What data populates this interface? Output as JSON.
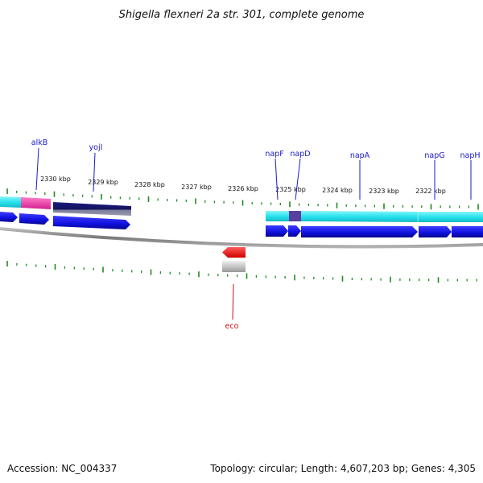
{
  "title": "Shigella flexneri 2a str. 301, complete genome",
  "footer": {
    "accession": "Accession: NC_004337",
    "summary": "Topology: circular; Length: 4,607,203 bp; Genes: 4,305"
  },
  "colors": {
    "tick": "#1e8c1e",
    "gene_blue": "#1414e6",
    "cds_cyan": "#2fe3ee",
    "feature_magenta": "#ee3fa6",
    "feature_navy": "#17176a",
    "feature_purple": "#5a3fa0",
    "feature_red": "#ee1111",
    "feature_gray": "#bdbdbd",
    "backbone": "#8a8a8a"
  },
  "kbp_labels": [
    "2330 kbp",
    "2329 kbp",
    "2328 kbp",
    "2327 kbp",
    "2326 kbp",
    "2325 kbp",
    "2324 kbp",
    "2323 kbp",
    "2322 kbp"
  ],
  "genes_top": [
    "alkB",
    "yojI",
    "napF",
    "napD",
    "napA",
    "napG",
    "napH"
  ],
  "genes_bottom": [
    "eco"
  ]
}
